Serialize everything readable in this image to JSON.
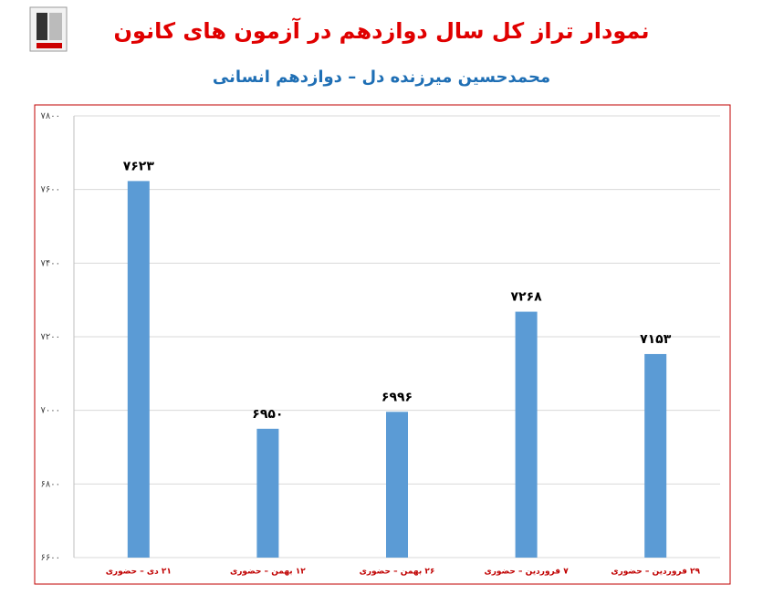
{
  "chart_data": {
    "type": "bar",
    "title": "نمودار تراز کل سال دوازدهم در آزمون های کانون",
    "subtitle": "محمدحسین میرزنده دل – دوازدهم انسانی",
    "categories": [
      "۲۱ دی – حضوری",
      "۱۲ بهمن – حضوری",
      "۲۶ بهمن – حضوری",
      "۷ فروردین – حضوری",
      "۲۹ فروردین – حضوری"
    ],
    "values": [
      7623,
      6950,
      6996,
      7268,
      7153
    ],
    "value_labels": [
      "۷۶۲۳",
      "۶۹۵۰",
      "۶۹۹۶",
      "۷۲۶۸",
      "۷۱۵۳"
    ],
    "color": "#5b9bd5",
    "ylim": [
      6600,
      7800
    ],
    "yticks": [
      {
        "value": 6600,
        "label": "۶۶۰۰"
      },
      {
        "value": 6800,
        "label": "۶۸۰۰"
      },
      {
        "value": 7000,
        "label": "۷۰۰۰"
      },
      {
        "value": 7200,
        "label": "۷۲۰۰"
      },
      {
        "value": 7400,
        "label": "۷۴۰۰"
      },
      {
        "value": 7600,
        "label": "۷۶۰۰"
      },
      {
        "value": 7800,
        "label": "۷۸۰۰"
      }
    ],
    "grid": true
  }
}
